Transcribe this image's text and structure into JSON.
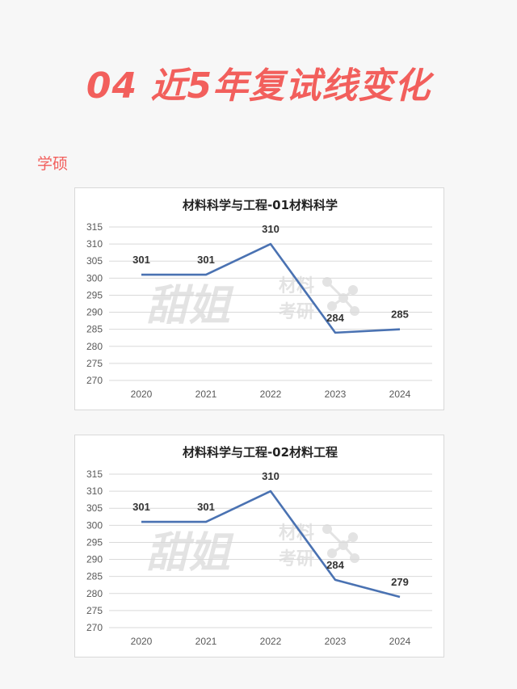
{
  "header": {
    "title": "04 近5年复试线变化"
  },
  "section": {
    "label": "学硕"
  },
  "watermark": {
    "big": "甜姐",
    "line1": "材料",
    "line2": "考研"
  },
  "chart_data": [
    {
      "type": "line",
      "title": "材料科学与工程-01材料科学",
      "categories": [
        "2020",
        "2021",
        "2022",
        "2023",
        "2024"
      ],
      "series": [
        {
          "values": [
            301,
            301,
            310,
            284,
            285
          ]
        }
      ],
      "ylim": [
        270,
        315
      ],
      "yticks": [
        270,
        275,
        280,
        285,
        290,
        295,
        300,
        305,
        310,
        315
      ],
      "grid": true,
      "color": "#4a72b2"
    },
    {
      "type": "line",
      "title": "材料科学与工程-02材料工程",
      "categories": [
        "2020",
        "2021",
        "2022",
        "2023",
        "2024"
      ],
      "series": [
        {
          "values": [
            301,
            301,
            310,
            284,
            279
          ]
        }
      ],
      "ylim": [
        270,
        315
      ],
      "yticks": [
        270,
        275,
        280,
        285,
        290,
        295,
        300,
        305,
        310,
        315
      ],
      "grid": true,
      "color": "#4a72b2"
    }
  ]
}
